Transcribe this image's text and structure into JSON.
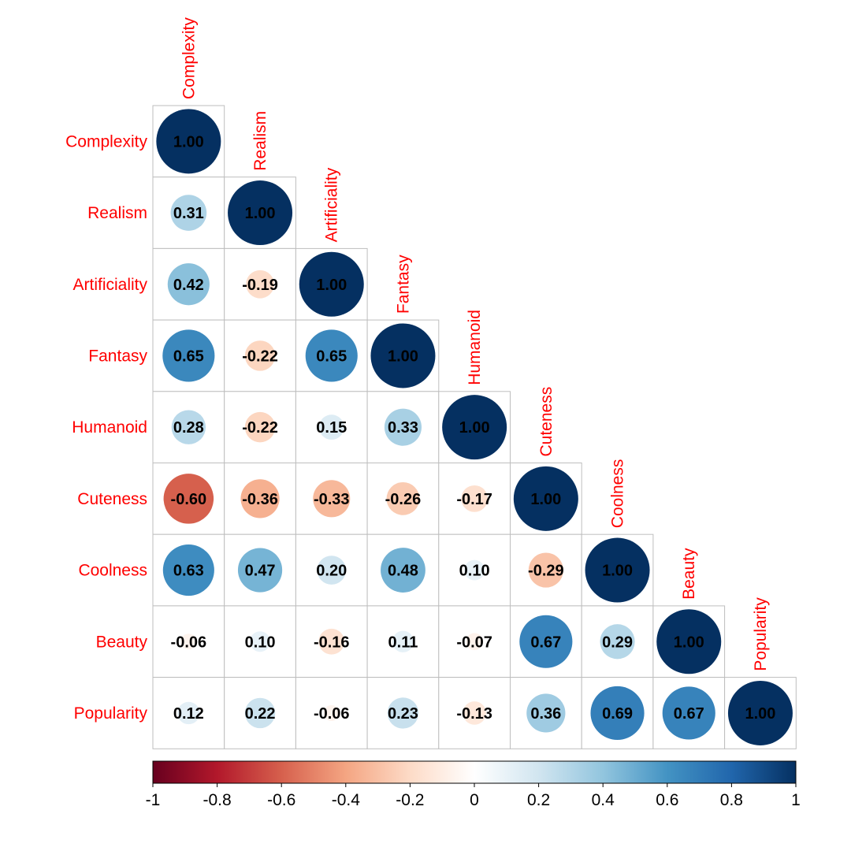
{
  "chart_data": {
    "type": "heatmap",
    "style": "lower-triangle correlation matrix with circle glyphs",
    "variables": [
      "Complexity",
      "Realism",
      "Artificiality",
      "Fantasy",
      "Humanoid",
      "Cuteness",
      "Coolness",
      "Beauty",
      "Popularity"
    ],
    "lower_triangle": [
      [
        1.0
      ],
      [
        0.31,
        1.0
      ],
      [
        0.42,
        -0.19,
        1.0
      ],
      [
        0.65,
        -0.22,
        0.65,
        1.0
      ],
      [
        0.28,
        -0.22,
        0.15,
        0.33,
        1.0
      ],
      [
        -0.6,
        -0.36,
        -0.33,
        -0.26,
        -0.17,
        1.0
      ],
      [
        0.63,
        0.47,
        0.2,
        0.48,
        0.1,
        -0.29,
        1.0
      ],
      [
        -0.06,
        0.1,
        -0.16,
        0.11,
        -0.07,
        0.67,
        0.29,
        1.0
      ],
      [
        0.12,
        0.22,
        -0.06,
        0.23,
        -0.13,
        0.36,
        0.69,
        0.67,
        1.0
      ]
    ],
    "colorbar": {
      "range": [
        -1,
        1
      ],
      "ticks": [
        "-1",
        "-0.8",
        "-0.6",
        "-0.4",
        "-0.2",
        "0",
        "0.2",
        "0.4",
        "0.6",
        "0.8",
        "1"
      ],
      "colors": [
        "#67001F",
        "#B2182B",
        "#D6604D",
        "#F4A582",
        "#FDDBC7",
        "#FFFFFF",
        "#D1E5F0",
        "#92C5DE",
        "#4393C3",
        "#2166AC",
        "#053061"
      ]
    },
    "label_color": "#FF0000",
    "grid_color": "#BEBEBE"
  }
}
